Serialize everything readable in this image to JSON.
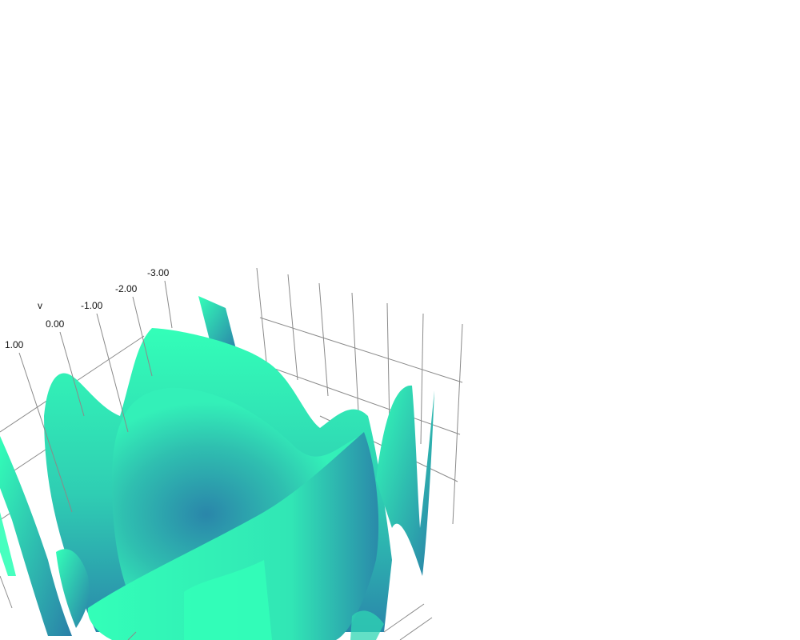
{
  "chart_data": {
    "type": "surface",
    "axes": {
      "y": {
        "title": "v",
        "ticks": [
          "1.00",
          "0.00",
          "-1.00",
          "-2.00",
          "-3.00"
        ]
      }
    },
    "grid": true,
    "legend": "none",
    "colorscale": [
      "#2a7fa8",
      "#2fbfb0",
      "#33ffb8"
    ]
  }
}
